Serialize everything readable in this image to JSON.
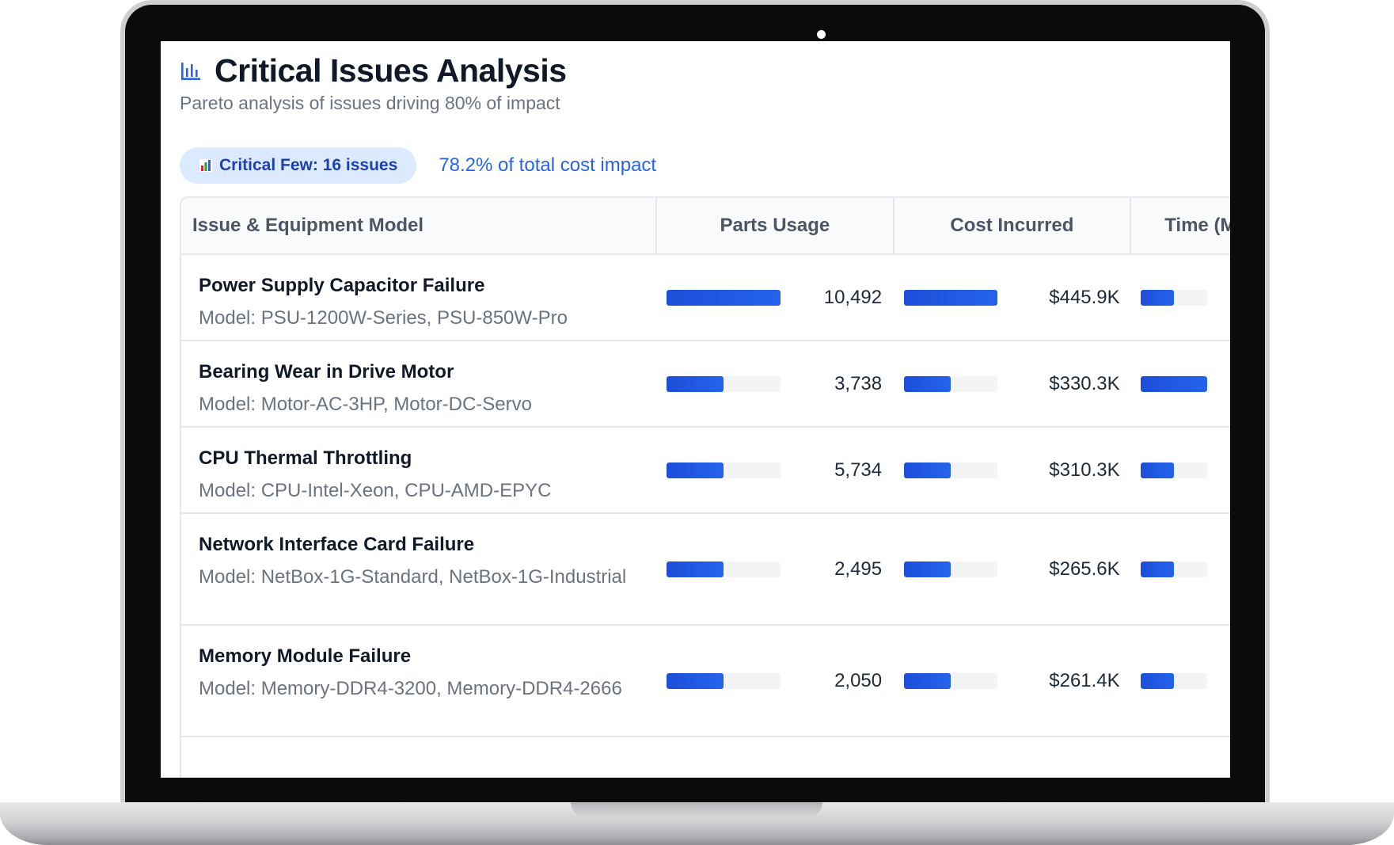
{
  "header": {
    "title": "Critical Issues Analysis",
    "subtitle": "Pareto analysis of issues driving 80% of impact",
    "icon": "bar-chart-icon"
  },
  "summary": {
    "pill_label": "Critical Few: 16 issues",
    "pill_icon": "colored-bar-chart-icon",
    "impact_text": "78.2% of total cost impact"
  },
  "table": {
    "columns": [
      "Issue & Equipment Model",
      "Parts Usage",
      "Cost Incurred",
      "Time (M"
    ],
    "rows": [
      {
        "name": "Power Supply Capacitor Failure",
        "model": "Model: PSU-1200W-Series, PSU-850W-Pro",
        "parts_value": "10,492",
        "parts_fill": 1.0,
        "cost_value": "$445.9K",
        "cost_fill": 1.0,
        "time_fill": 0.5
      },
      {
        "name": "Bearing Wear in Drive Motor",
        "model": "Model: Motor-AC-3HP, Motor-DC-Servo",
        "parts_value": "3,738",
        "parts_fill": 0.5,
        "cost_value": "$330.3K",
        "cost_fill": 0.5,
        "time_fill": 1.0
      },
      {
        "name": "CPU Thermal Throttling",
        "model": "Model: CPU-Intel-Xeon, CPU-AMD-EPYC",
        "parts_value": "5,734",
        "parts_fill": 0.5,
        "cost_value": "$310.3K",
        "cost_fill": 0.5,
        "time_fill": 0.5
      },
      {
        "name": "Network Interface Card Failure",
        "model": "Model: NetBox-1G-Standard, NetBox-1G-Industrial",
        "parts_value": "2,495",
        "parts_fill": 0.5,
        "cost_value": "$265.6K",
        "cost_fill": 0.5,
        "time_fill": 0.5
      },
      {
        "name": "Memory Module Failure",
        "model": "Model: Memory-DDR4-3200, Memory-DDR4-2666",
        "parts_value": "2,050",
        "parts_fill": 0.5,
        "cost_value": "$261.4K",
        "cost_fill": 0.5,
        "time_fill": 0.5
      }
    ]
  },
  "colors": {
    "accent": "#2563eb",
    "pill_bg": "#dbeafe",
    "title": "#111827",
    "muted": "#6b7280"
  }
}
